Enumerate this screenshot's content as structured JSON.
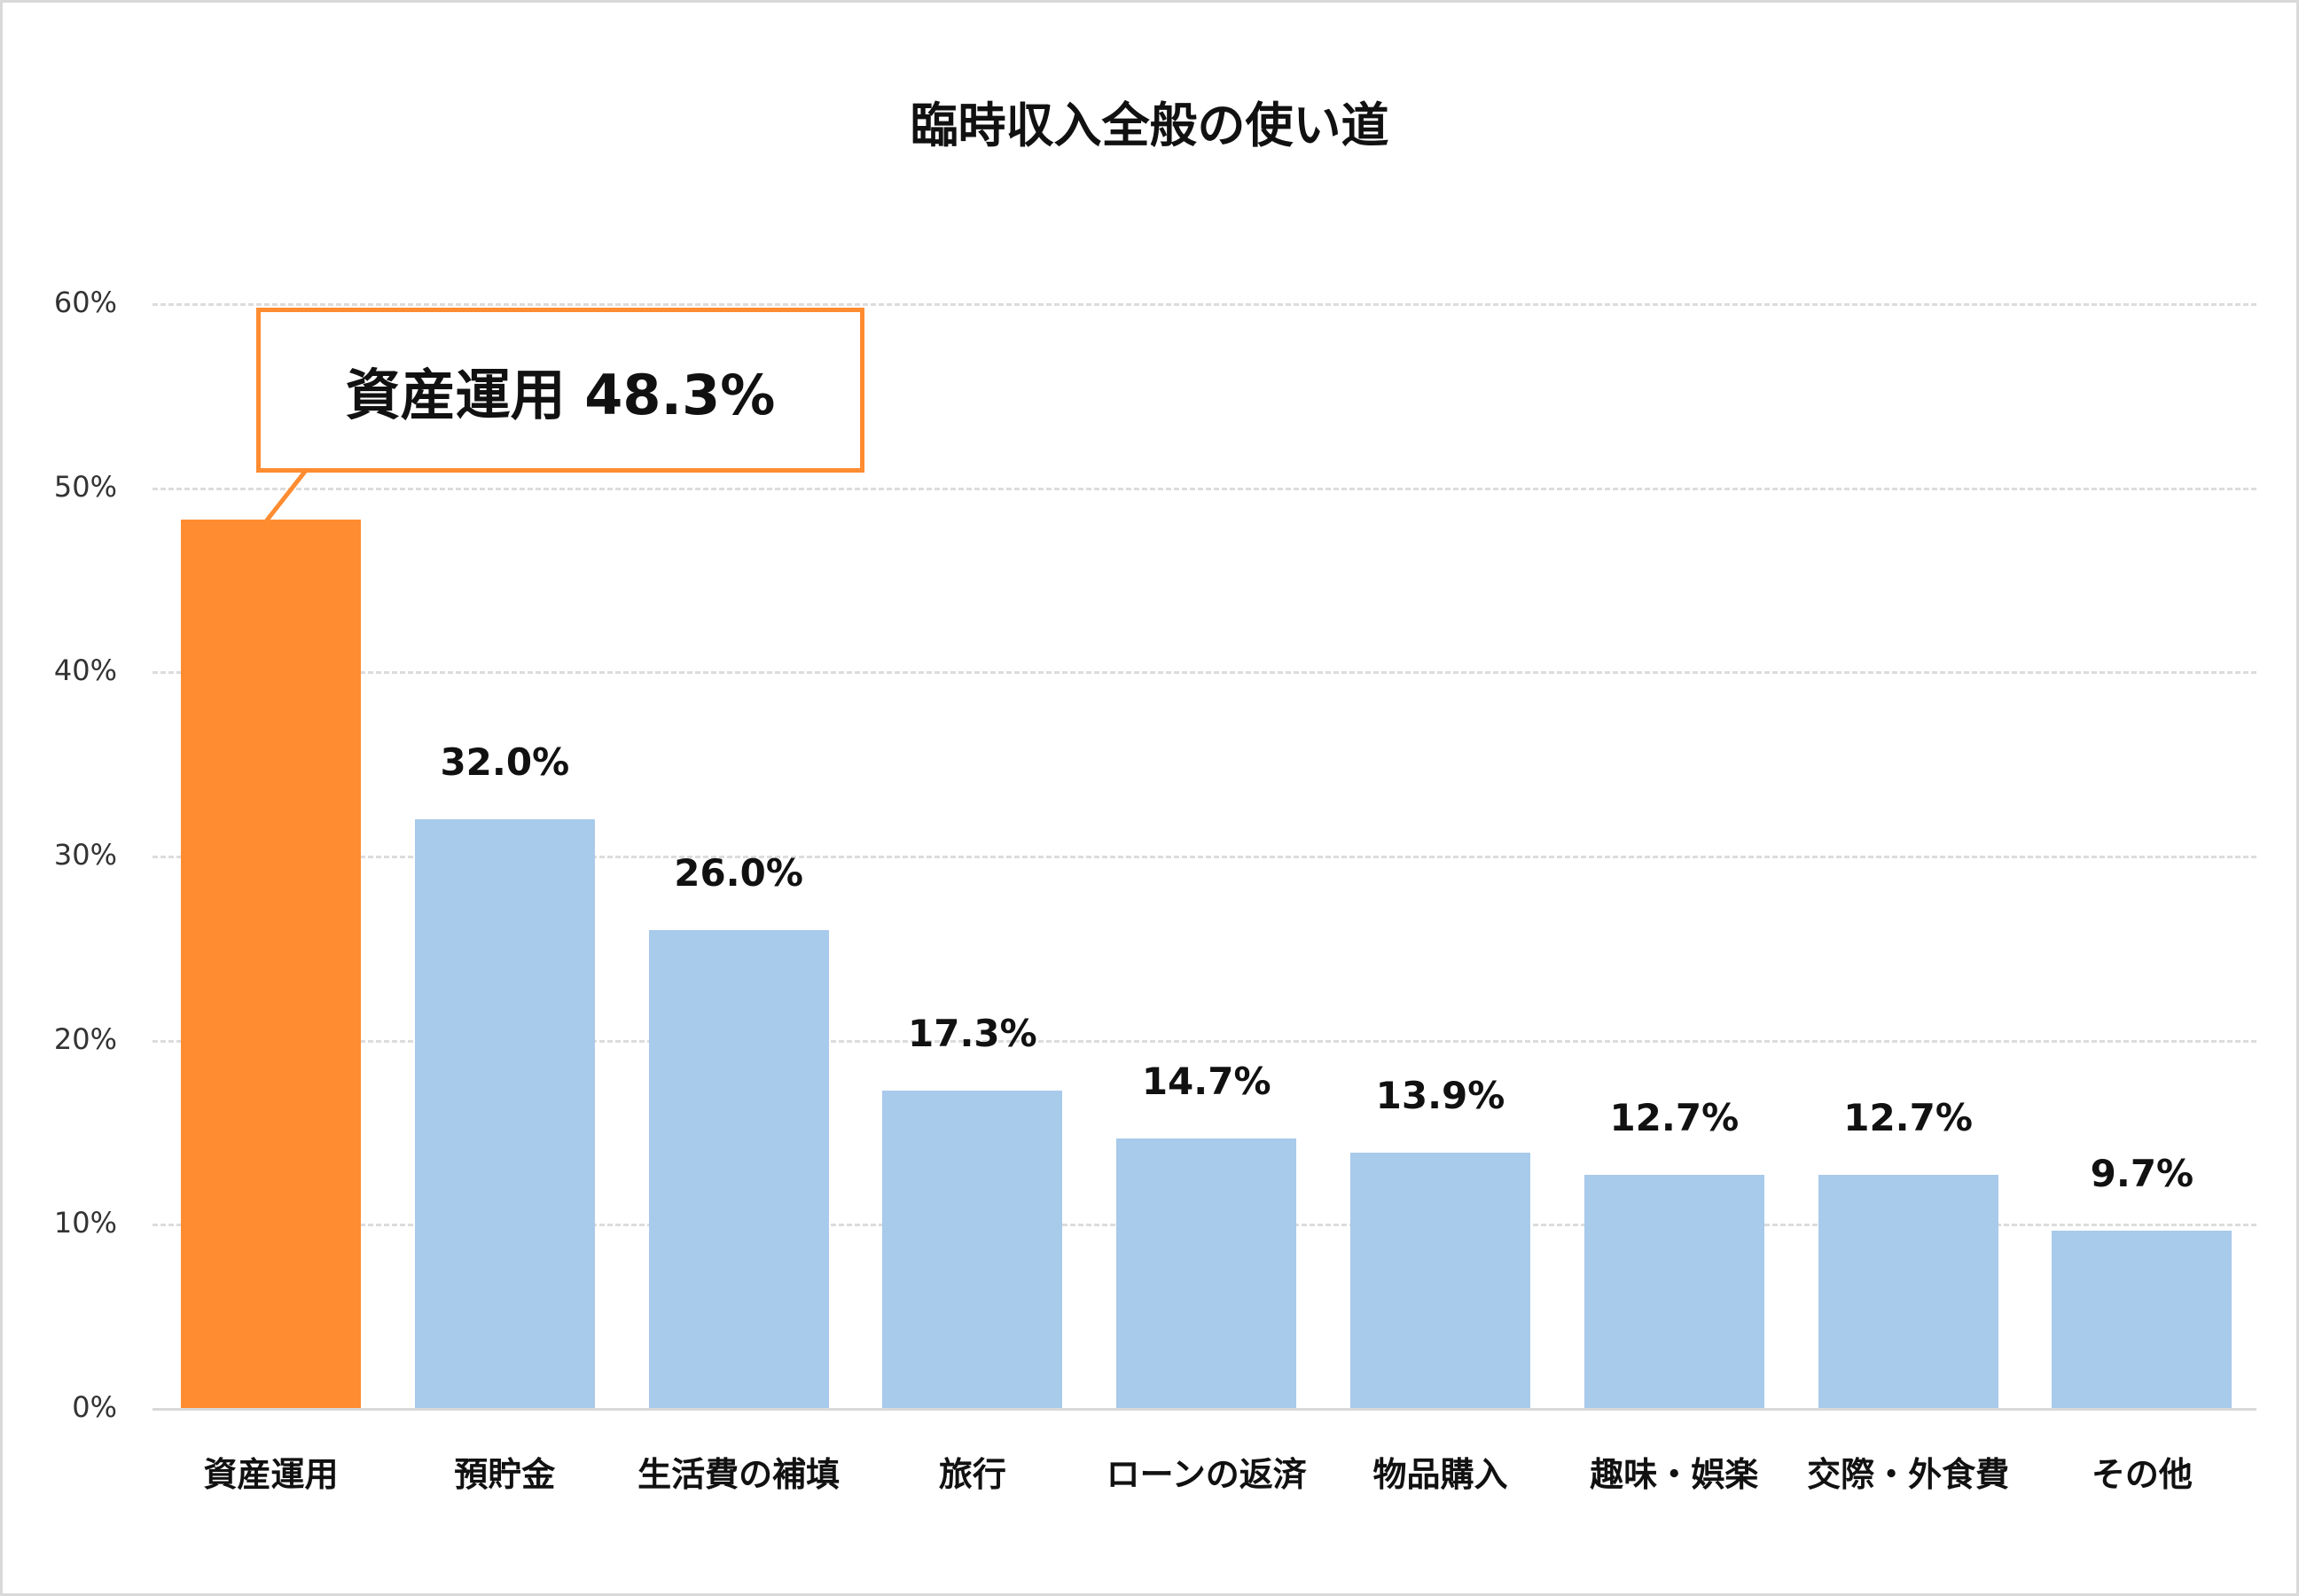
{
  "chart_data": {
    "type": "bar",
    "title": "臨時収入全般の使い道",
    "xlabel": "",
    "ylabel": "",
    "ylim": [
      0,
      60
    ],
    "yticks": [
      "0%",
      "10%",
      "20%",
      "30%",
      "40%",
      "50%",
      "60%"
    ],
    "grid": true,
    "legend": null,
    "categories": [
      "資産運用",
      "預貯金",
      "生活費の補填",
      "旅行",
      "ローンの返済",
      "物品購入",
      "趣味・娯楽",
      "交際・外食費",
      "その他"
    ],
    "values": [
      48.3,
      32.0,
      26.0,
      17.3,
      14.7,
      13.9,
      12.7,
      12.7,
      9.7
    ],
    "value_labels": [
      "48.3%",
      "32.0%",
      "26.0%",
      "17.3%",
      "14.7%",
      "13.9%",
      "12.7%",
      "12.7%",
      "9.7%"
    ],
    "annotation": "資産運用 48.3%",
    "highlight_index": 0,
    "colors": {
      "highlight": "#ff8c30",
      "default": "#a8caeb",
      "grid": "#dcdcdc",
      "axis": "#d9d9d9"
    }
  }
}
